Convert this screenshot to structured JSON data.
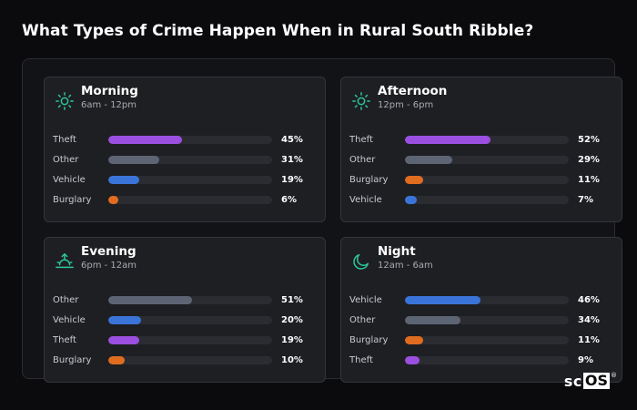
{
  "title": "What Types of Crime Happen When in Rural South Ribble?",
  "colors": {
    "background": "#0b0b0e",
    "card": "#1e1f23",
    "track": "#2b2c31",
    "icon_accent": "#2dc79b",
    "Theft": "#9b4fe0",
    "Other": "#5d6575",
    "Vehicle": "#3b74d9",
    "Burglary": "#e06c1f"
  },
  "cards": [
    {
      "title": "Morning",
      "subtitle": "6am - 12pm",
      "icon": "sun-icon",
      "rows": [
        {
          "label": "Theft",
          "value": 45,
          "pct": "45%"
        },
        {
          "label": "Other",
          "value": 31,
          "pct": "31%"
        },
        {
          "label": "Vehicle",
          "value": 19,
          "pct": "19%"
        },
        {
          "label": "Burglary",
          "value": 6,
          "pct": "6%"
        }
      ]
    },
    {
      "title": "Afternoon",
      "subtitle": "12pm - 6pm",
      "icon": "sun-icon",
      "rows": [
        {
          "label": "Theft",
          "value": 52,
          "pct": "52%"
        },
        {
          "label": "Other",
          "value": 29,
          "pct": "29%"
        },
        {
          "label": "Burglary",
          "value": 11,
          "pct": "11%"
        },
        {
          "label": "Vehicle",
          "value": 7,
          "pct": "7%"
        }
      ]
    },
    {
      "title": "Evening",
      "subtitle": "6pm - 12am",
      "icon": "sunset-icon",
      "rows": [
        {
          "label": "Other",
          "value": 51,
          "pct": "51%"
        },
        {
          "label": "Vehicle",
          "value": 20,
          "pct": "20%"
        },
        {
          "label": "Theft",
          "value": 19,
          "pct": "19%"
        },
        {
          "label": "Burglary",
          "value": 10,
          "pct": "10%"
        }
      ]
    },
    {
      "title": "Night",
      "subtitle": "12am - 6am",
      "icon": "moon-icon",
      "rows": [
        {
          "label": "Vehicle",
          "value": 46,
          "pct": "46%"
        },
        {
          "label": "Other",
          "value": 34,
          "pct": "34%"
        },
        {
          "label": "Burglary",
          "value": 11,
          "pct": "11%"
        },
        {
          "label": "Theft",
          "value": 9,
          "pct": "9%"
        }
      ]
    }
  ],
  "logo": {
    "sc": "sc",
    "os": "OS",
    "reg": "®"
  }
}
